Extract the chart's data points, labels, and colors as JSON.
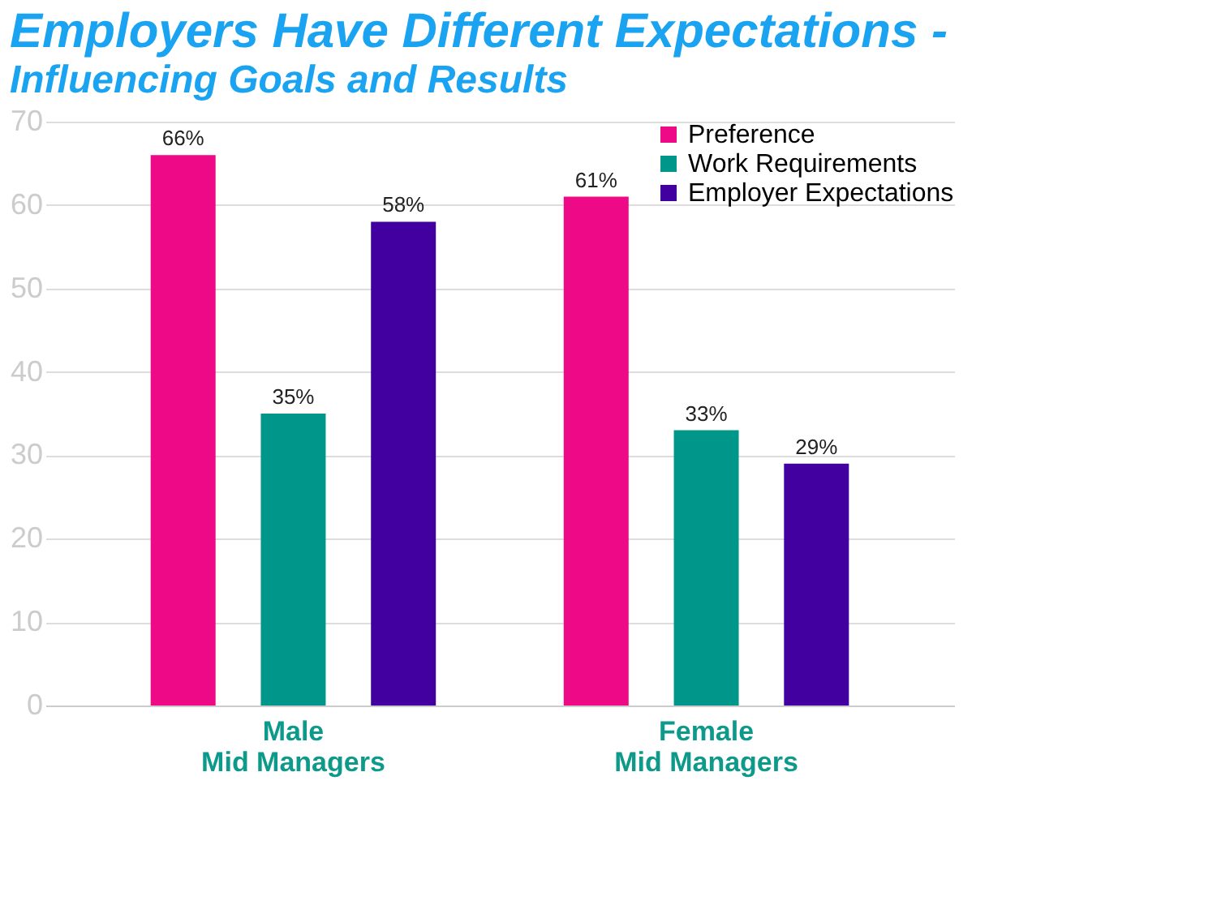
{
  "chart_data": {
    "type": "bar",
    "title": "Employers Have Different Expectations -",
    "subtitle": "Influencing Goals and Results",
    "categories": [
      "Male\nMid Managers",
      "Female\nMid Managers"
    ],
    "series": [
      {
        "name": "Preference",
        "color": "#ee0a86",
        "values": [
          66,
          61
        ],
        "value_labels": [
          "66%",
          "61%"
        ]
      },
      {
        "name": "Work Requirements",
        "color": "#00978a",
        "values": [
          35,
          33
        ],
        "value_labels": [
          "35%",
          "33%"
        ]
      },
      {
        "name": "Employer Expectations",
        "color": "#4200a0",
        "values": [
          58,
          29
        ],
        "value_labels": [
          "58%",
          "29%"
        ]
      }
    ],
    "ylim": [
      0,
      70
    ],
    "yticks": [
      0,
      10,
      20,
      30,
      40,
      50,
      60,
      70
    ],
    "grid": "y",
    "legend": "top right"
  }
}
